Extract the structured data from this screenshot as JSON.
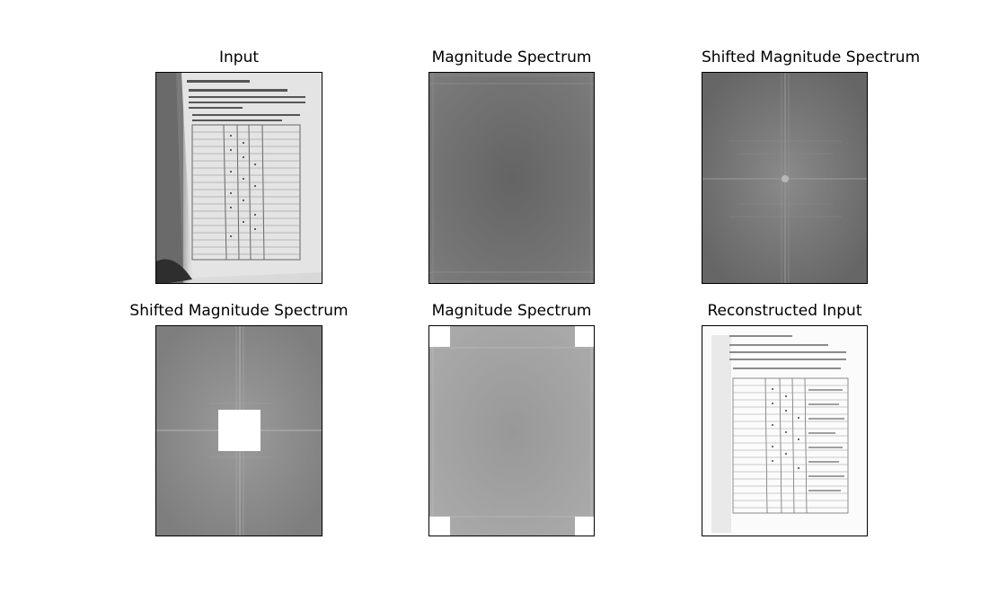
{
  "figure": {
    "panels": [
      {
        "title": "Input",
        "image": "grayscale-photo-of-book-page-with-table"
      },
      {
        "title": "Magnitude Spectrum",
        "image": "fft-magnitude-spectrum-unshifted"
      },
      {
        "title": "Shifted Magnitude Spectrum",
        "image": "fft-magnitude-spectrum-shifted"
      },
      {
        "title": "Shifted Magnitude Spectrum",
        "image": "shifted-spectrum-with-center-block-masked"
      },
      {
        "title": "Magnitude Spectrum",
        "image": "unshifted-spectrum-with-corners-masked"
      },
      {
        "title": "Reconstructed Input",
        "image": "high-pass-reconstructed-page"
      }
    ],
    "colors": {
      "background": "#ffffff",
      "spectrum_gray": "#6f6f6f",
      "masked_spectrum_gray": "#a4a4a4",
      "mask_white": "#ffffff"
    }
  }
}
